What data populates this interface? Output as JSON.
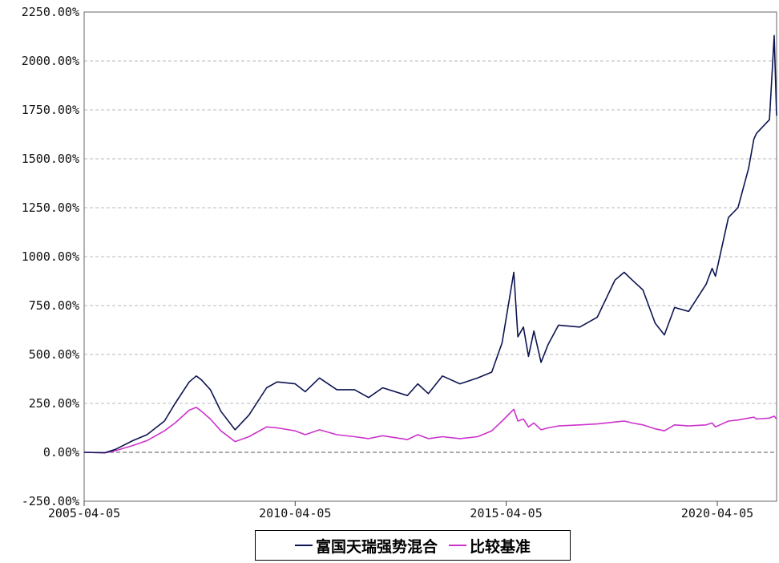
{
  "chart_data": {
    "type": "line",
    "title": "",
    "xlabel": "",
    "ylabel": "",
    "ylim": [
      -250,
      2250
    ],
    "xlim": [
      "2005-04-05",
      "2021-08-31"
    ],
    "y_ticks": [
      -250,
      0,
      250,
      500,
      750,
      1000,
      1250,
      1500,
      1750,
      2000,
      2250
    ],
    "y_tick_labels": [
      "-250.00%",
      "0.00%",
      "250.00%",
      "500.00%",
      "750.00%",
      "1000.00%",
      "1250.00%",
      "1500.00%",
      "1750.00%",
      "2000.00%",
      "2250.00%"
    ],
    "x_ticks": [
      "2005-04-05",
      "2010-04-05",
      "2015-04-05",
      "2020-04-05"
    ],
    "grid": true,
    "legend_position": "bottom",
    "colors": {
      "fund": "#0d1450",
      "benchmark": "#cc33cc",
      "grid": "#b8b8b8",
      "zero_line": "#555555"
    },
    "series": [
      {
        "name": "富国天瑞强势混合",
        "x": [
          "2005-04-05",
          "2005-10-01",
          "2006-01-01",
          "2006-06-01",
          "2006-10-01",
          "2007-03-01",
          "2007-06-01",
          "2007-10-01",
          "2007-12-01",
          "2008-01-15",
          "2008-04-01",
          "2008-07-01",
          "2008-11-01",
          "2009-03-01",
          "2009-08-01",
          "2009-11-01",
          "2010-04-05",
          "2010-07-01",
          "2010-11-01",
          "2011-04-01",
          "2011-09-01",
          "2012-01-01",
          "2012-05-01",
          "2012-12-01",
          "2013-03-01",
          "2013-06-01",
          "2013-10-01",
          "2014-03-01",
          "2014-08-01",
          "2014-12-01",
          "2015-03-01",
          "2015-06-10",
          "2015-07-15",
          "2015-09-01",
          "2015-10-15",
          "2015-12-01",
          "2016-02-01",
          "2016-04-01",
          "2016-07-01",
          "2017-01-01",
          "2017-06-01",
          "2017-11-01",
          "2018-01-20",
          "2018-04-01",
          "2018-07-01",
          "2018-10-15",
          "2019-01-03",
          "2019-04-01",
          "2019-08-01",
          "2019-12-31",
          "2020-02-20",
          "2020-03-20",
          "2020-07-10",
          "2020-10-01",
          "2020-12-31",
          "2021-02-15",
          "2021-03-10",
          "2021-06-30",
          "2021-08-10",
          "2021-08-31"
        ],
        "values": [
          0,
          -2,
          15,
          60,
          90,
          160,
          250,
          360,
          390,
          370,
          320,
          210,
          115,
          190,
          330,
          360,
          350,
          310,
          380,
          320,
          320,
          280,
          330,
          290,
          350,
          300,
          390,
          350,
          380,
          410,
          560,
          920,
          590,
          640,
          490,
          620,
          460,
          550,
          650,
          640,
          690,
          880,
          920,
          880,
          830,
          660,
          600,
          740,
          720,
          860,
          940,
          900,
          1200,
          1250,
          1450,
          1600,
          1630,
          1700,
          2130,
          1720
        ]
      },
      {
        "name": "比较基准",
        "x": [
          "2005-04-05",
          "2005-10-01",
          "2006-01-01",
          "2006-06-01",
          "2006-10-01",
          "2007-03-01",
          "2007-06-01",
          "2007-10-01",
          "2007-12-01",
          "2008-01-15",
          "2008-04-01",
          "2008-07-01",
          "2008-11-01",
          "2009-03-01",
          "2009-08-01",
          "2009-11-01",
          "2010-04-05",
          "2010-07-01",
          "2010-11-01",
          "2011-04-01",
          "2011-09-01",
          "2012-01-01",
          "2012-05-01",
          "2012-12-01",
          "2013-03-01",
          "2013-06-01",
          "2013-10-01",
          "2014-03-01",
          "2014-08-01",
          "2014-12-01",
          "2015-03-01",
          "2015-06-10",
          "2015-07-15",
          "2015-09-01",
          "2015-10-15",
          "2015-12-01",
          "2016-02-01",
          "2016-04-01",
          "2016-07-01",
          "2017-01-01",
          "2017-06-01",
          "2017-11-01",
          "2018-01-20",
          "2018-04-01",
          "2018-07-01",
          "2018-10-15",
          "2019-01-03",
          "2019-04-01",
          "2019-08-01",
          "2019-12-31",
          "2020-02-20",
          "2020-03-20",
          "2020-07-10",
          "2020-10-01",
          "2020-12-31",
          "2021-02-15",
          "2021-03-10",
          "2021-06-30",
          "2021-08-10",
          "2021-08-31"
        ],
        "values": [
          0,
          -3,
          8,
          35,
          60,
          110,
          150,
          215,
          230,
          210,
          170,
          110,
          55,
          80,
          130,
          125,
          110,
          90,
          115,
          90,
          80,
          70,
          85,
          65,
          90,
          70,
          80,
          70,
          80,
          110,
          160,
          220,
          160,
          170,
          130,
          150,
          115,
          125,
          135,
          140,
          145,
          155,
          160,
          150,
          140,
          120,
          110,
          140,
          135,
          140,
          150,
          130,
          160,
          165,
          175,
          180,
          170,
          175,
          185,
          170
        ]
      }
    ]
  },
  "legend": {
    "fund_label": "富国天瑞强势混合",
    "benchmark_label": "比较基准"
  }
}
